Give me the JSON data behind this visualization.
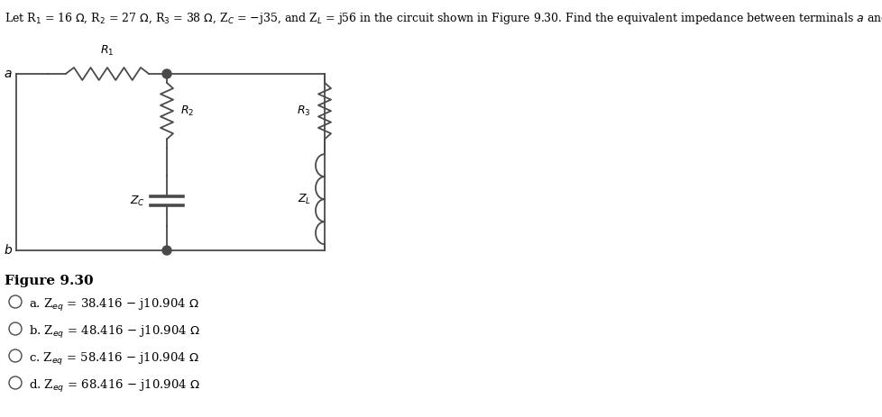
{
  "title_text": "Let R$_1$ = 16 $\\Omega$, R$_2$ = 27 $\\Omega$, R$_3$ = 38 $\\Omega$, Z$_C$ = $-$j35, and Z$_L$ = j56 in the circuit shown in Figure 9.30. Find the equivalent impedance between terminals $a$ and $b$.",
  "figure_label": "Figure 9.30",
  "text_color": "#000000",
  "bg_color": "#ffffff",
  "circuit_color": "#4a4a4a",
  "font_size_title": 9.0,
  "font_size_label": 9.0,
  "font_size_choice": 9.5,
  "font_size_fig": 11.0
}
